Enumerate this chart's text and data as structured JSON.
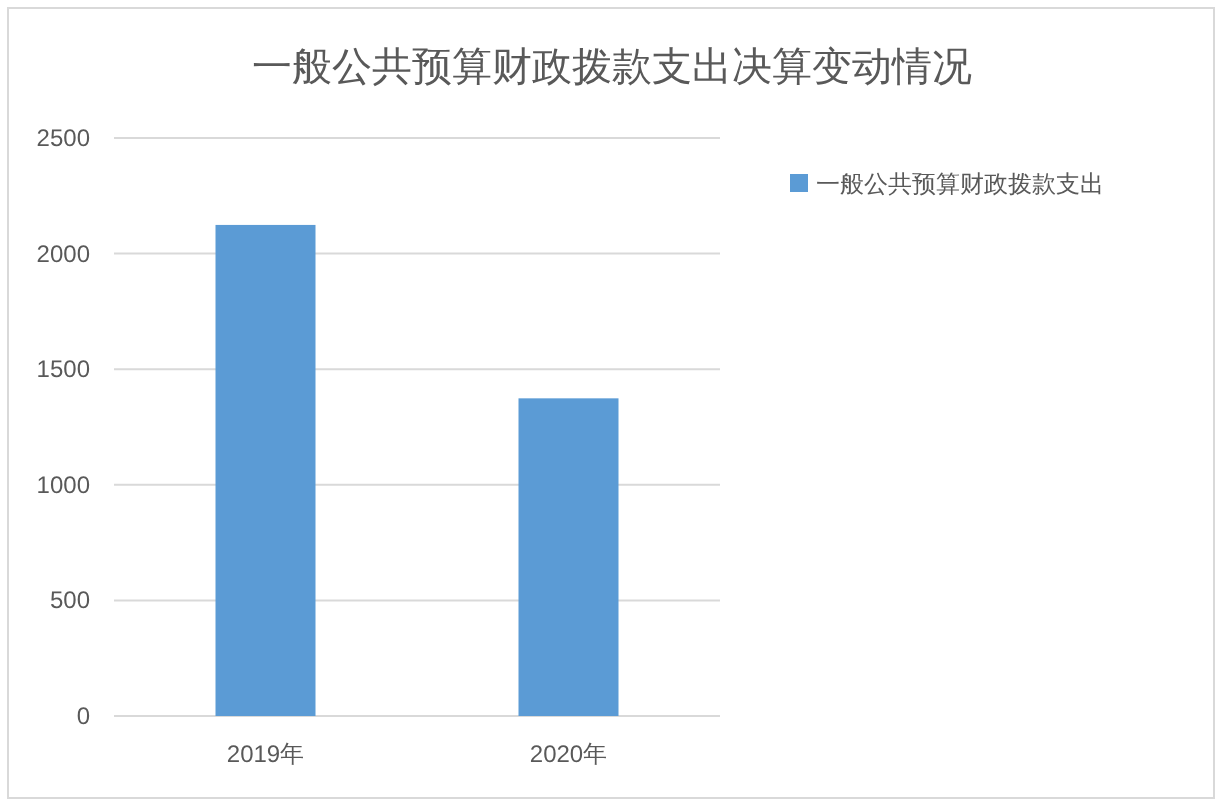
{
  "chart_data": {
    "type": "bar",
    "title": "一般公共预算财政拨款支出决算变动情况",
    "categories": [
      "2019年",
      "2020年"
    ],
    "series": [
      {
        "name": "一般公共预算财政拨款支出",
        "color": "#5b9bd5",
        "values": [
          2124,
          1374
        ]
      }
    ],
    "ylim": [
      0,
      2500
    ],
    "yticks": [
      0,
      500,
      1000,
      1500,
      2000,
      2500
    ],
    "grid": "y",
    "legend": "right"
  }
}
